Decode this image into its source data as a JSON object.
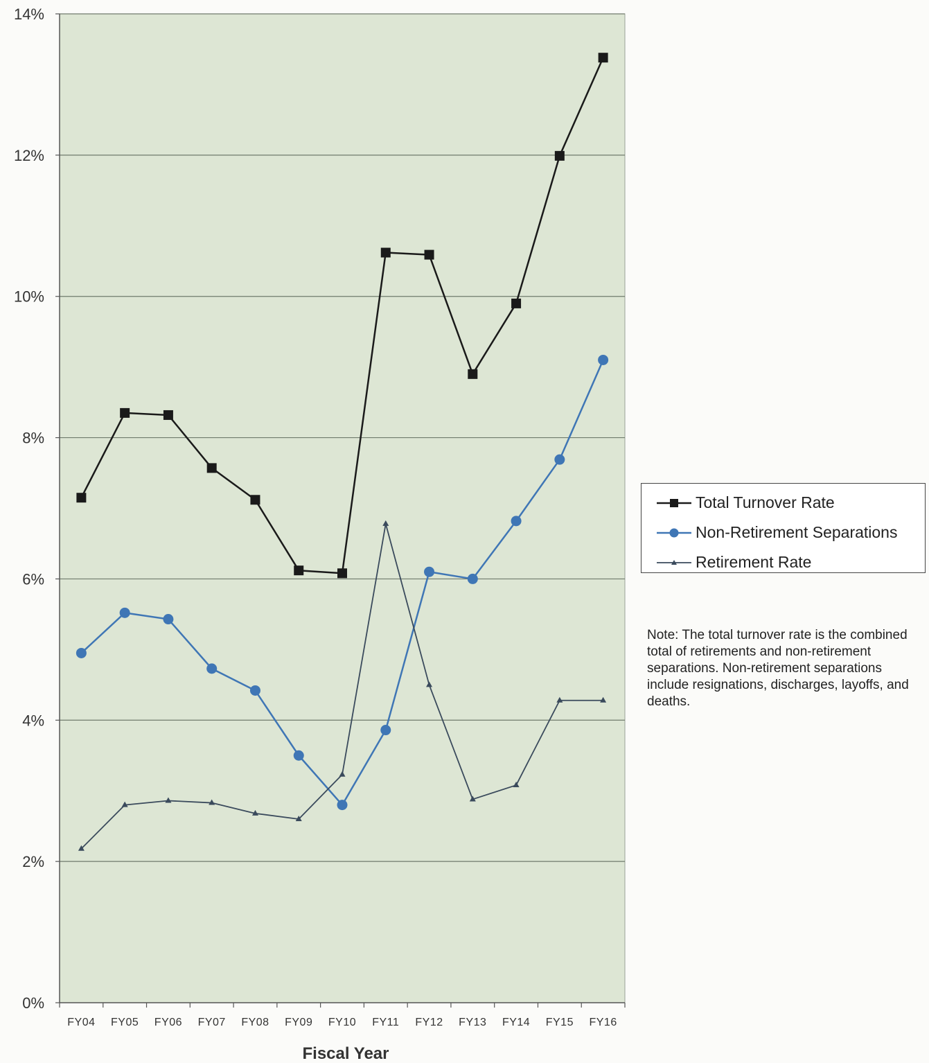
{
  "chart_data": {
    "type": "line",
    "title": "",
    "xlabel": "Fiscal Year",
    "ylabel": "",
    "categories": [
      "FY04",
      "FY05",
      "FY06",
      "FY07",
      "FY08",
      "FY09",
      "FY10",
      "FY11",
      "FY12",
      "FY13",
      "FY14",
      "FY15",
      "FY16"
    ],
    "ylim": [
      0,
      14
    ],
    "yticks": [
      0,
      2,
      4,
      6,
      8,
      10,
      12,
      14
    ],
    "ytick_labels": [
      "0%",
      "2%",
      "4%",
      "6%",
      "8%",
      "10%",
      "12%",
      "14%"
    ],
    "grid": true,
    "legend_position": "right",
    "series": [
      {
        "name": "Total Turnover Rate",
        "marker": "square",
        "color": "#1a1a1a",
        "values": [
          7.15,
          8.35,
          8.32,
          7.57,
          7.12,
          6.12,
          6.08,
          10.62,
          10.59,
          8.9,
          9.9,
          11.99,
          13.38
        ]
      },
      {
        "name": "Non-Retirement Separations",
        "marker": "circle",
        "color": "#3f76b5",
        "values": [
          4.95,
          5.52,
          5.43,
          4.73,
          4.42,
          3.5,
          2.8,
          3.86,
          6.1,
          6.0,
          6.82,
          7.69,
          9.1
        ]
      },
      {
        "name": "Retirement Rate",
        "marker": "triangle",
        "color": "#3a4a5c",
        "values": [
          2.18,
          2.8,
          2.86,
          2.83,
          2.68,
          2.6,
          3.23,
          6.78,
          4.5,
          2.88,
          3.08,
          4.28,
          4.28
        ]
      }
    ]
  },
  "note": "Note: The total turnover rate is the combined total of retirements and non-retirement separations. Non-retirement separations include resignations, discharges, layoffs, and deaths.",
  "colors": {
    "plot_background": "#dde6d4",
    "gridline": "#6f7a6c",
    "axis": "#555555"
  }
}
